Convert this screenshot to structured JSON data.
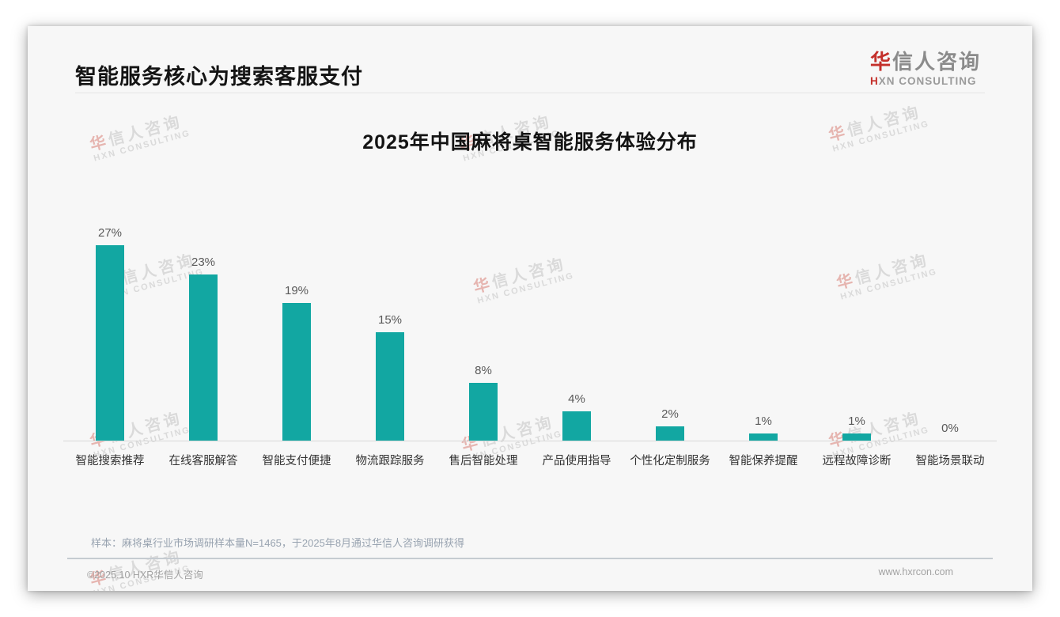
{
  "page": {
    "title": "智能服务核心为搜索客服支付",
    "logo": {
      "zh_accent": "华",
      "zh_rest": "信人咨询",
      "en_accent": "H",
      "en_rest": "XN CONSULTING"
    },
    "footnote": "样本：麻将桌行业市场调研样本量N=1465，于2025年8月通过华信人咨询调研获得",
    "footer": {
      "copyright": "©2025.10 HXR华信人咨询",
      "website": "www.hxrcon.com"
    }
  },
  "watermark": {
    "zh_accent": "华",
    "zh_rest": "信人咨询",
    "en": "HXN CONSULTING"
  },
  "chart_data": {
    "type": "bar",
    "title": "2025年中国麻将桌智能服务体验分布",
    "categories": [
      "智能搜索推荐",
      "在线客服解答",
      "智能支付便捷",
      "物流跟踪服务",
      "售后智能处理",
      "产品使用指导",
      "个性化定制服务",
      "智能保养提醒",
      "远程故障诊断",
      "智能场景联动"
    ],
    "values": [
      27,
      23,
      19,
      15,
      8,
      4,
      2,
      1,
      1,
      0
    ],
    "value_labels": [
      "27%",
      "23%",
      "19%",
      "15%",
      "8%",
      "4%",
      "2%",
      "1%",
      "1%",
      "0%"
    ],
    "unit": "%",
    "xlabel": "",
    "ylabel": "",
    "ylim": [
      0,
      30
    ],
    "grid": false,
    "legend_position": "none",
    "bar_color": "#12a7a2",
    "axis_line_color": "#d8d8d8"
  }
}
